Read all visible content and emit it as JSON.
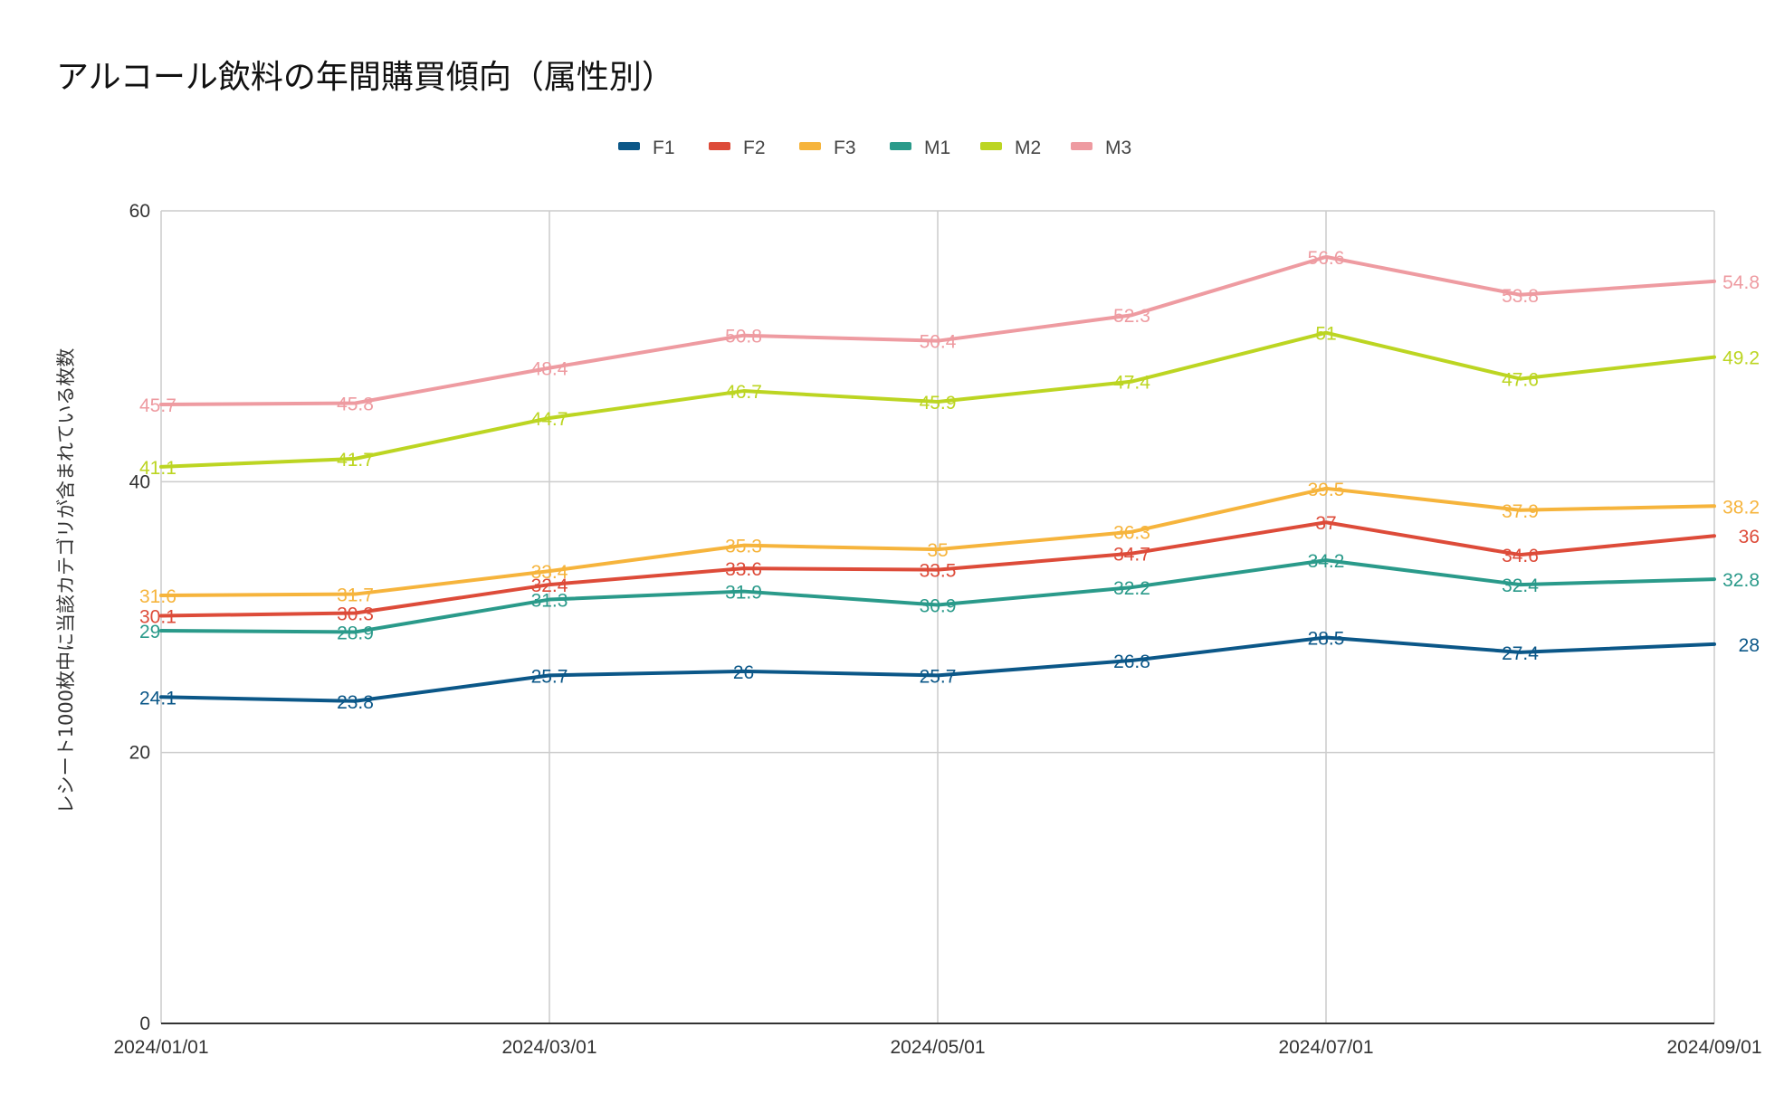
{
  "chart_data": {
    "type": "line",
    "title": "アルコール飲料の年間購買傾向（属性別）",
    "xlabel": "",
    "ylabel": "レシート1000枚中に当該カテゴリが含まれている枚数",
    "ylim": [
      0,
      60
    ],
    "yticks": [
      "0",
      "20",
      "40",
      "60"
    ],
    "xticks": [
      "2024/01/01",
      "2024/03/01",
      "2024/05/01",
      "2024/07/01",
      "2024/09/01"
    ],
    "x": [
      "2024/01/01",
      "2024/02/01",
      "2024/03/01",
      "2024/04/01",
      "2024/05/01",
      "2024/06/01",
      "2024/07/01",
      "2024/08/01",
      "2024/09/01"
    ],
    "legend_position": "top",
    "grid": true,
    "series": [
      {
        "name": "F1",
        "color": "#0b5788",
        "values": [
          24.1,
          23.8,
          25.7,
          26,
          25.7,
          26.8,
          28.5,
          27.4,
          28
        ]
      },
      {
        "name": "F2",
        "color": "#dd4b39",
        "values": [
          30.1,
          30.3,
          32.4,
          33.6,
          33.5,
          34.7,
          37,
          34.6,
          36
        ]
      },
      {
        "name": "F3",
        "color": "#f6b43c",
        "values": [
          31.6,
          31.7,
          33.4,
          35.3,
          35,
          36.3,
          39.5,
          37.9,
          38.2
        ]
      },
      {
        "name": "M1",
        "color": "#2a9a8a",
        "values": [
          29,
          28.9,
          31.3,
          31.9,
          30.9,
          32.2,
          34.2,
          32.4,
          32.8
        ]
      },
      {
        "name": "M2",
        "color": "#bcd522",
        "values": [
          41.1,
          41.7,
          44.7,
          46.7,
          45.9,
          47.4,
          51,
          47.6,
          49.2
        ]
      },
      {
        "name": "M3",
        "color": "#ee9ba1",
        "values": [
          45.7,
          45.8,
          48.4,
          50.8,
          50.4,
          52.3,
          56.6,
          53.8,
          54.8
        ]
      }
    ]
  }
}
